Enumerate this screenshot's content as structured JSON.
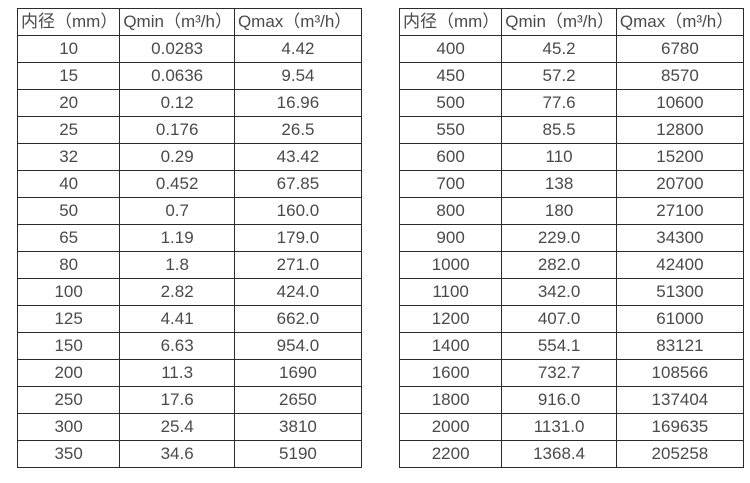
{
  "page": {
    "background": "#ffffff",
    "text_color": "#4a4a4a",
    "border_color": "#2b2b2b"
  },
  "tables": [
    {
      "name": "flow-range-table-small-diameters",
      "headers": [
        "内径（mm）",
        "Qmin（m³/h）",
        "Qmax（m³/h）"
      ],
      "rows": [
        [
          "10",
          "0.0283",
          "4.42"
        ],
        [
          "15",
          "0.0636",
          "9.54"
        ],
        [
          "20",
          "0.12",
          "16.96"
        ],
        [
          "25",
          "0.176",
          "26.5"
        ],
        [
          "32",
          "0.29",
          "43.42"
        ],
        [
          "40",
          "0.452",
          "67.85"
        ],
        [
          "50",
          "0.7",
          "160.0"
        ],
        [
          "65",
          "1.19",
          "179.0"
        ],
        [
          "80",
          "1.8",
          "271.0"
        ],
        [
          "100",
          "2.82",
          "424.0"
        ],
        [
          "125",
          "4.41",
          "662.0"
        ],
        [
          "150",
          "6.63",
          "954.0"
        ],
        [
          "200",
          "11.3",
          "1690"
        ],
        [
          "250",
          "17.6",
          "2650"
        ],
        [
          "300",
          "25.4",
          "3810"
        ],
        [
          "350",
          "34.6",
          "5190"
        ]
      ]
    },
    {
      "name": "flow-range-table-large-diameters",
      "headers": [
        "内径（mm）",
        "Qmin（m³/h）",
        "Qmax（m³/h）"
      ],
      "rows": [
        [
          "400",
          "45.2",
          "6780"
        ],
        [
          "450",
          "57.2",
          "8570"
        ],
        [
          "500",
          "77.6",
          "10600"
        ],
        [
          "550",
          "85.5",
          "12800"
        ],
        [
          "600",
          "110",
          "15200"
        ],
        [
          "700",
          "138",
          "20700"
        ],
        [
          "800",
          "180",
          "27100"
        ],
        [
          "900",
          "229.0",
          "34300"
        ],
        [
          "1000",
          "282.0",
          "42400"
        ],
        [
          "1100",
          "342.0",
          "51300"
        ],
        [
          "1200",
          "407.0",
          "61000"
        ],
        [
          "1400",
          "554.1",
          "83121"
        ],
        [
          "1600",
          "732.7",
          "108566"
        ],
        [
          "1800",
          "916.0",
          "137404"
        ],
        [
          "2000",
          "1131.0",
          "169635"
        ],
        [
          "2200",
          "1368.4",
          "205258"
        ]
      ]
    }
  ]
}
